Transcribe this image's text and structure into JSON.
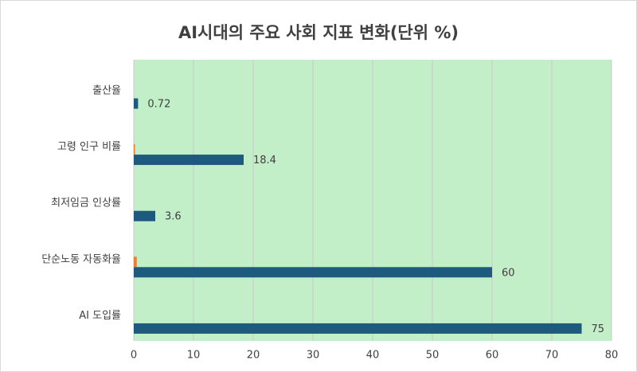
{
  "chart_data": {
    "type": "bar",
    "orientation": "horizontal",
    "title": "AI시대의 주요 사회 지표 변화(단위 %)",
    "categories": [
      "출산율",
      "고령 인구 비률",
      "최저임금 인상률",
      "단순노동 자동화율",
      "AI 도입률"
    ],
    "series": [
      {
        "color": "#1d5a7d",
        "values": [
          0.72,
          18.4,
          3.6,
          60,
          75
        ]
      },
      {
        "color": "#ed7d31",
        "values": [
          0,
          0.2,
          0,
          0.5,
          0
        ]
      }
    ],
    "xlim": [
      0,
      80
    ],
    "xticks": [
      0,
      10,
      20,
      30,
      40,
      50,
      60,
      70,
      80
    ],
    "grid": true,
    "plot_background": "#c3efc8"
  }
}
